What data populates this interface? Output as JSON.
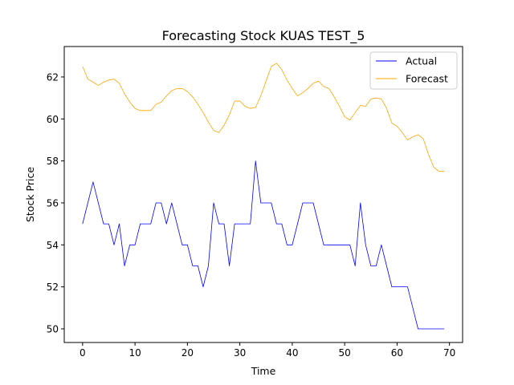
{
  "chart_data": {
    "type": "line",
    "title": "Forecasting Stock KUAS TEST_5",
    "xlabel": "Time",
    "ylabel": "Stock Price",
    "xlim": [
      -3.5,
      72.5
    ],
    "ylim": [
      49.35,
      63.45
    ],
    "xticks": [
      0,
      10,
      20,
      30,
      40,
      50,
      60,
      70
    ],
    "yticks": [
      50,
      52,
      54,
      56,
      58,
      60,
      62
    ],
    "grid": false,
    "legend_position": "top-right",
    "series": [
      {
        "name": "Actual",
        "color": "#0000ff",
        "x": [
          0,
          1,
          2,
          3,
          4,
          5,
          6,
          7,
          8,
          9,
          10,
          11,
          12,
          13,
          14,
          15,
          16,
          17,
          18,
          19,
          20,
          21,
          22,
          23,
          24,
          25,
          26,
          27,
          28,
          29,
          30,
          31,
          32,
          33,
          34,
          35,
          36,
          37,
          38,
          39,
          40,
          41,
          42,
          43,
          44,
          45,
          46,
          47,
          48,
          49,
          50,
          51,
          52,
          53,
          54,
          55,
          56,
          57,
          58,
          59,
          60,
          61,
          62,
          63,
          64,
          65,
          66,
          67,
          68,
          69
        ],
        "values": [
          55,
          56,
          57,
          56,
          55,
          55,
          54,
          55,
          53,
          54,
          54,
          55,
          55,
          55,
          56,
          56,
          55,
          56,
          55,
          54,
          54,
          53,
          53,
          52,
          53,
          56,
          55,
          55,
          53,
          55,
          55,
          55,
          55,
          58,
          56,
          56,
          56,
          55,
          55,
          54,
          54,
          55,
          56,
          56,
          56,
          55,
          54,
          54,
          54,
          54,
          54,
          54,
          53,
          56,
          54,
          53,
          53,
          54,
          53,
          52,
          52,
          52,
          52,
          51,
          50,
          50,
          50,
          50,
          50,
          50
        ]
      },
      {
        "name": "Forecast",
        "color": "#ffa500",
        "x": [
          0,
          1,
          2,
          3,
          4,
          5,
          6,
          7,
          8,
          9,
          10,
          11,
          12,
          13,
          14,
          15,
          16,
          17,
          18,
          19,
          20,
          21,
          22,
          23,
          24,
          25,
          26,
          27,
          28,
          29,
          30,
          31,
          32,
          33,
          34,
          35,
          36,
          37,
          38,
          39,
          40,
          41,
          42,
          43,
          44,
          45,
          46,
          47,
          48,
          49,
          50,
          51,
          52,
          53,
          54,
          55,
          56,
          57,
          58,
          59,
          60,
          61,
          62,
          63,
          64,
          65,
          66,
          67,
          68,
          69
        ],
        "values": [
          62.5,
          61.9,
          61.75,
          61.6,
          61.75,
          61.85,
          61.9,
          61.7,
          61.2,
          60.8,
          60.5,
          60.4,
          60.4,
          60.4,
          60.7,
          60.8,
          61.1,
          61.35,
          61.45,
          61.45,
          61.3,
          61.05,
          60.7,
          60.3,
          59.85,
          59.45,
          59.35,
          59.7,
          60.2,
          60.85,
          60.85,
          60.6,
          60.5,
          60.55,
          61.1,
          61.8,
          62.5,
          62.65,
          62.35,
          61.85,
          61.45,
          61.1,
          61.25,
          61.45,
          61.7,
          61.8,
          61.55,
          61.45,
          61.05,
          60.6,
          60.1,
          59.95,
          60.3,
          60.65,
          60.6,
          60.95,
          61.0,
          60.95,
          60.5,
          59.8,
          59.65,
          59.35,
          59.0,
          59.15,
          59.25,
          59.05,
          58.3,
          57.7,
          57.5,
          57.5
        ]
      }
    ]
  }
}
